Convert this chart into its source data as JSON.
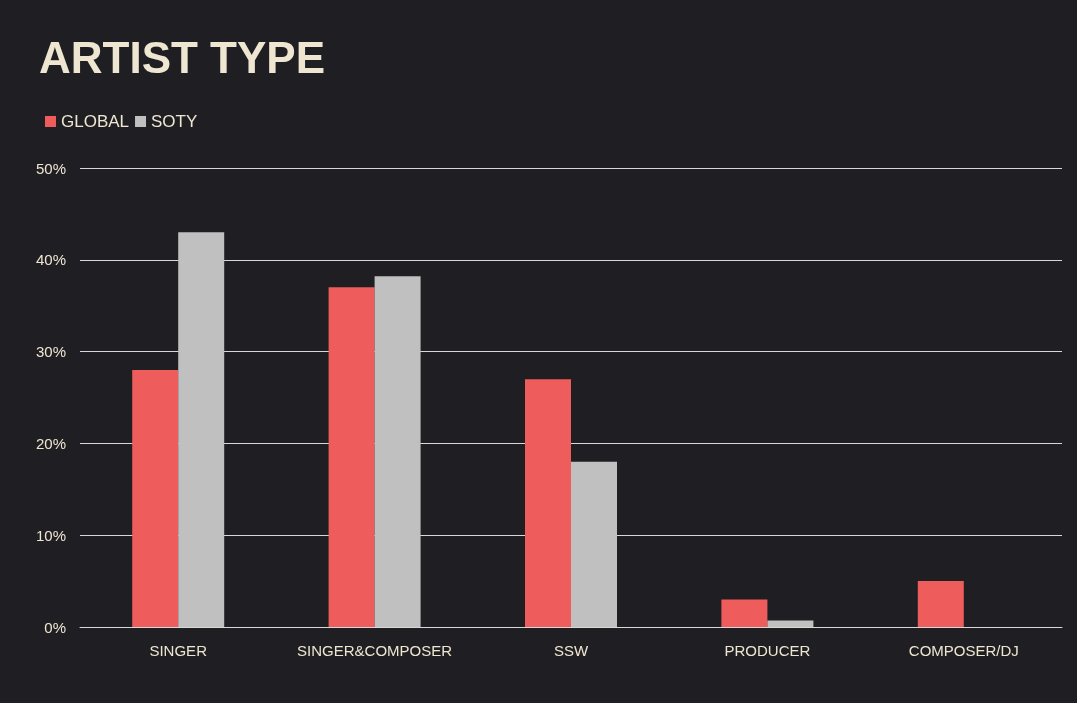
{
  "chart_data": {
    "type": "bar",
    "title": "ARTIST TYPE",
    "categories": [
      "SINGER",
      "SINGER&COMPOSER",
      "SSW",
      "PRODUCER",
      "COMPOSER/DJ"
    ],
    "series": [
      {
        "name": "GLOBAL",
        "color": "#ee5c5c",
        "values": [
          28,
          37,
          27,
          3,
          5
        ]
      },
      {
        "name": "SOTY",
        "color": "#c0c0c0",
        "values": [
          43,
          38.2,
          18,
          0.7,
          0
        ]
      }
    ],
    "ylim": [
      0,
      50
    ],
    "yticks": [
      {
        "value": 0,
        "label": "0%"
      },
      {
        "value": 10,
        "label": "10%"
      },
      {
        "value": 20,
        "label": "20%"
      },
      {
        "value": 30,
        "label": "30%"
      },
      {
        "value": 40,
        "label": "40%"
      },
      {
        "value": 50,
        "label": "50%"
      }
    ],
    "grid": "y",
    "legend": "top left"
  }
}
